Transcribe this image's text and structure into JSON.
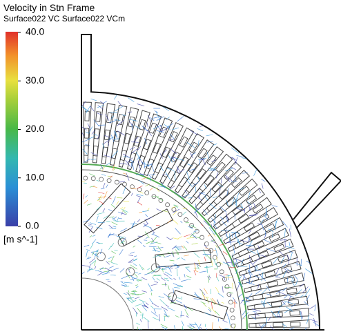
{
  "legend": {
    "title": "Velocity in Stn Frame",
    "subtitle": "Surface022 VC Surface022 VCm",
    "lim": [
      0,
      40
    ],
    "ticks": [
      {
        "value": 40,
        "label": "40.0"
      },
      {
        "value": 30,
        "label": "30.0"
      },
      {
        "value": 20,
        "label": "20.0"
      },
      {
        "value": 10,
        "label": "10.0"
      },
      {
        "value": 0,
        "label": "0.0"
      }
    ],
    "unit": "[m s^-1]"
  }
}
